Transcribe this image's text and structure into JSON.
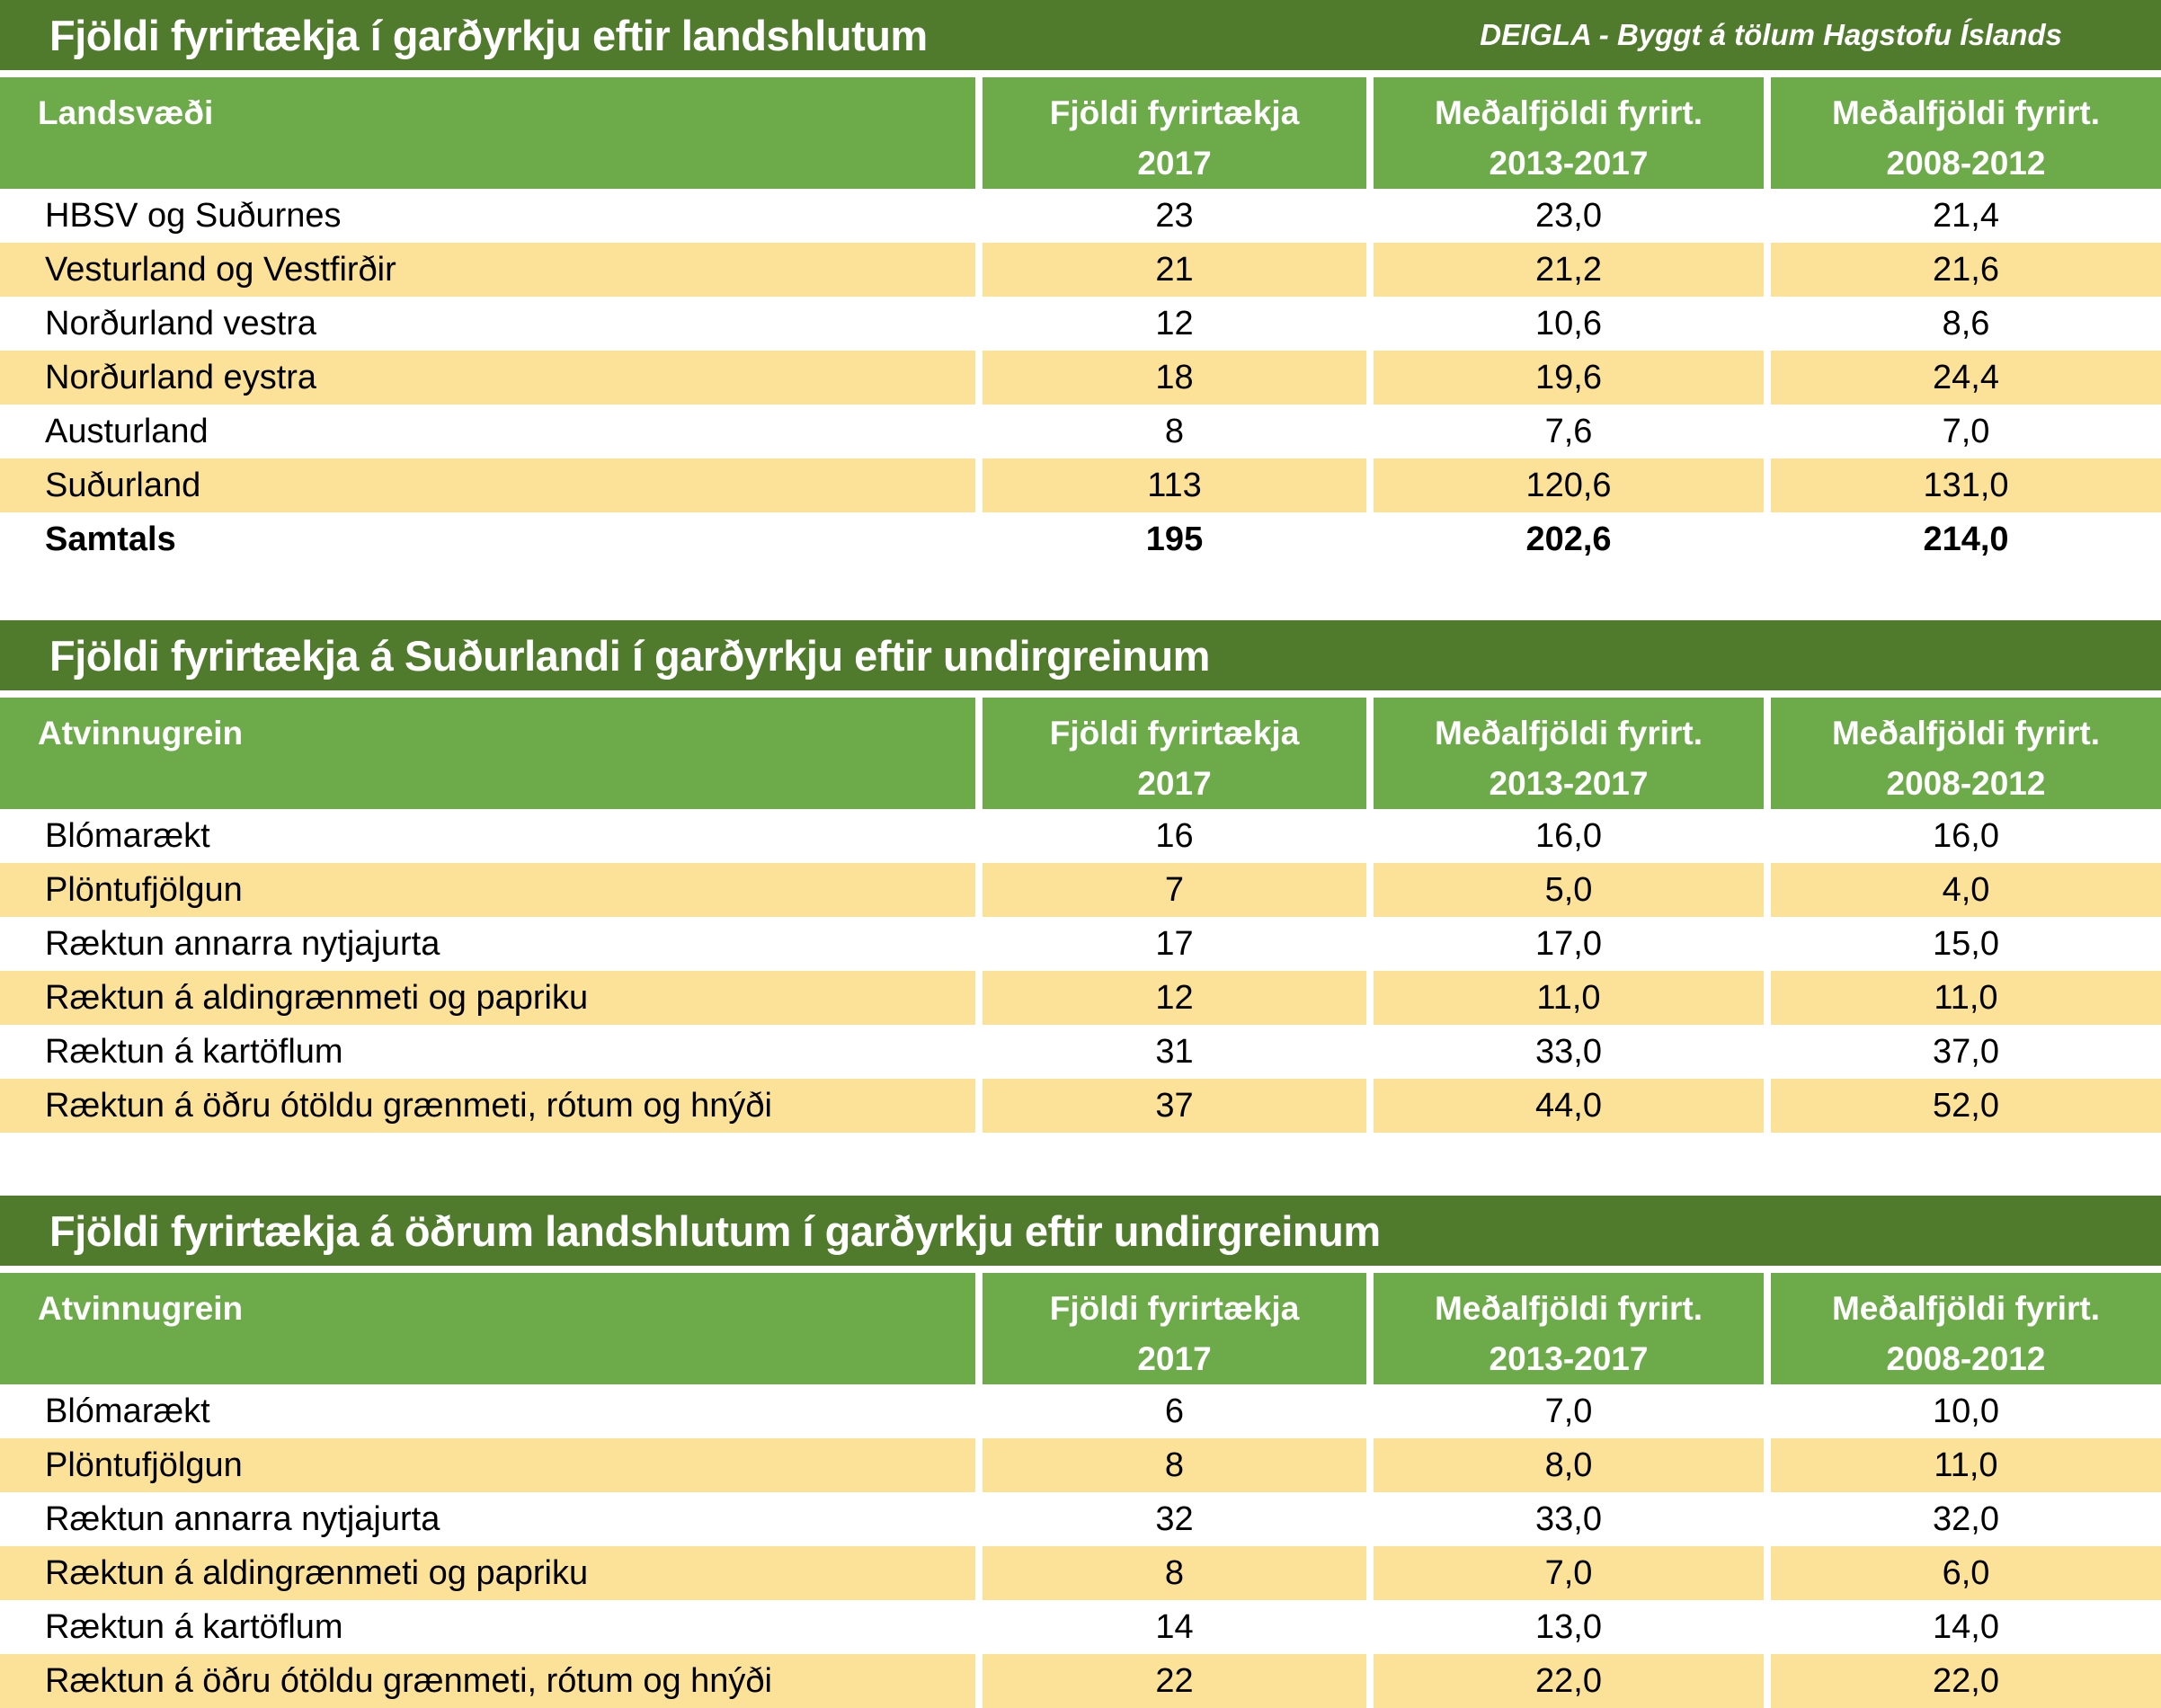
{
  "colors": {
    "title_bar_green": "#507a2c",
    "header_green": "#6dab4a",
    "row_yellow": "#fce198",
    "text_dark": "#000000",
    "text_light": "#ffffff"
  },
  "tables": [
    {
      "title": "Fjöldi fyrirtækja í garðyrkju eftir landshlutum",
      "subtitle": "DEIGLA - Byggt á tölum Hagstofu Íslands",
      "header": {
        "col1": "Landsvæði",
        "col2": {
          "line1": "Fjöldi fyrirtækja",
          "line2": "2017"
        },
        "col3": {
          "line1": "Meðalfjöldi fyrirt.",
          "line2": "2013-2017"
        },
        "col4": {
          "line1": "Meðalfjöldi fyrirt.",
          "line2": "2008-2012"
        }
      },
      "rows": [
        {
          "label": "HBSV og Suðurnes",
          "v2017": "23",
          "avg2013_2017": "23,0",
          "avg2008_2012": "21,4",
          "bold": false
        },
        {
          "label": "Vesturland og Vestfirðir",
          "v2017": "21",
          "avg2013_2017": "21,2",
          "avg2008_2012": "21,6",
          "bold": false
        },
        {
          "label": "Norðurland vestra",
          "v2017": "12",
          "avg2013_2017": "10,6",
          "avg2008_2012": "8,6",
          "bold": false
        },
        {
          "label": "Norðurland eystra",
          "v2017": "18",
          "avg2013_2017": "19,6",
          "avg2008_2012": "24,4",
          "bold": false
        },
        {
          "label": "Austurland",
          "v2017": "8",
          "avg2013_2017": "7,6",
          "avg2008_2012": "7,0",
          "bold": false
        },
        {
          "label": "Suðurland",
          "v2017": "113",
          "avg2013_2017": "120,6",
          "avg2008_2012": "131,0",
          "bold": false
        },
        {
          "label": "Samtals",
          "v2017": "195",
          "avg2013_2017": "202,6",
          "avg2008_2012": "214,0",
          "bold": true
        }
      ]
    },
    {
      "title": "Fjöldi fyrirtækja á Suðurlandi í garðyrkju eftir undirgreinum",
      "header": {
        "col1": "Atvinnugrein",
        "col2": {
          "line1": "Fjöldi fyrirtækja",
          "line2": "2017"
        },
        "col3": {
          "line1": "Meðalfjöldi fyrirt.",
          "line2": "2013-2017"
        },
        "col4": {
          "line1": "Meðalfjöldi fyrirt.",
          "line2": "2008-2012"
        }
      },
      "rows": [
        {
          "label": "Blómarækt",
          "v2017": "16",
          "avg2013_2017": "16,0",
          "avg2008_2012": "16,0",
          "bold": false
        },
        {
          "label": "Plöntufjölgun",
          "v2017": "7",
          "avg2013_2017": "5,0",
          "avg2008_2012": "4,0",
          "bold": false
        },
        {
          "label": "Ræktun annarra nytjajurta",
          "v2017": "17",
          "avg2013_2017": "17,0",
          "avg2008_2012": "15,0",
          "bold": false
        },
        {
          "label": "Ræktun á aldingrænmeti og papriku",
          "v2017": "12",
          "avg2013_2017": "11,0",
          "avg2008_2012": "11,0",
          "bold": false
        },
        {
          "label": "Ræktun á kartöflum",
          "v2017": "31",
          "avg2013_2017": "33,0",
          "avg2008_2012": "37,0",
          "bold": false
        },
        {
          "label": "Ræktun á öðru ótöldu grænmeti, rótum og hnýði",
          "v2017": "37",
          "avg2013_2017": "44,0",
          "avg2008_2012": "52,0",
          "bold": false
        }
      ]
    },
    {
      "title": "Fjöldi fyrirtækja á öðrum landshlutum í garðyrkju eftir undirgreinum",
      "header": {
        "col1": "Atvinnugrein",
        "col2": {
          "line1": "Fjöldi fyrirtækja",
          "line2": "2017"
        },
        "col3": {
          "line1": "Meðalfjöldi fyrirt.",
          "line2": "2013-2017"
        },
        "col4": {
          "line1": "Meðalfjöldi fyrirt.",
          "line2": "2008-2012"
        }
      },
      "rows": [
        {
          "label": "Blómarækt",
          "v2017": "6",
          "avg2013_2017": "7,0",
          "avg2008_2012": "10,0",
          "bold": false
        },
        {
          "label": "Plöntufjölgun",
          "v2017": "8",
          "avg2013_2017": "8,0",
          "avg2008_2012": "11,0",
          "bold": false
        },
        {
          "label": "Ræktun annarra nytjajurta",
          "v2017": "32",
          "avg2013_2017": "33,0",
          "avg2008_2012": "32,0",
          "bold": false
        },
        {
          "label": "Ræktun á aldingrænmeti og papriku",
          "v2017": "8",
          "avg2013_2017": "7,0",
          "avg2008_2012": "6,0",
          "bold": false
        },
        {
          "label": "Ræktun á kartöflum",
          "v2017": "14",
          "avg2013_2017": "13,0",
          "avg2008_2012": "14,0",
          "bold": false
        },
        {
          "label": "Ræktun á öðru ótöldu grænmeti, rótum og hnýði",
          "v2017": "22",
          "avg2013_2017": "22,0",
          "avg2008_2012": "22,0",
          "bold": false
        }
      ]
    }
  ]
}
